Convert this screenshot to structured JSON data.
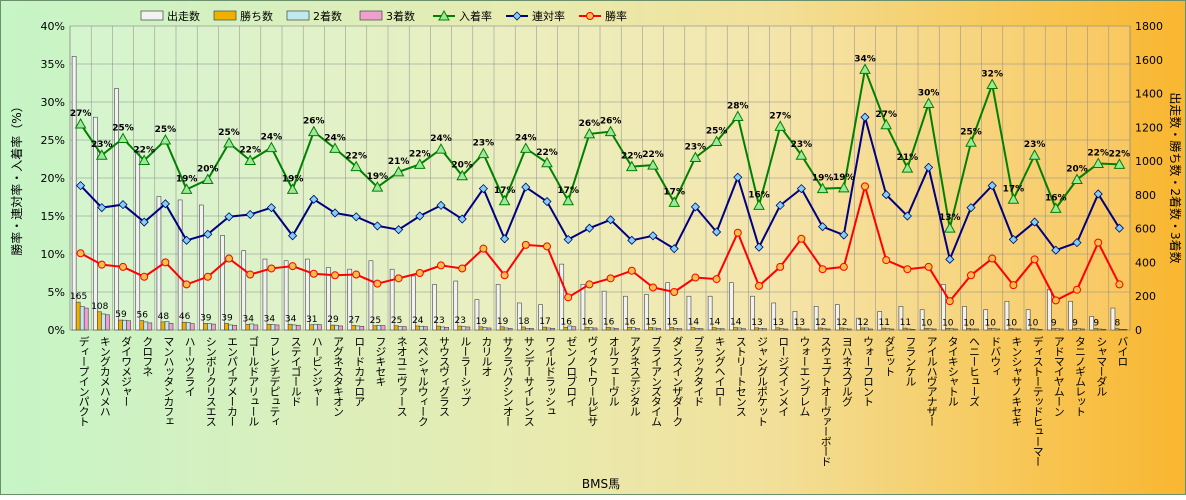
{
  "chart_data": {
    "type": "bar",
    "xlabel": "BMS馬",
    "ylabel_left": "勝率・連対率・入着率（%）",
    "ylabel_right": "出走数・勝ち数・2着数・3着数",
    "ylim_left": [
      0,
      40
    ],
    "ylim_right": [
      0,
      1800
    ],
    "left_ticks": [
      "0%",
      "5%",
      "10%",
      "15%",
      "20%",
      "25%",
      "30%",
      "35%",
      "40%"
    ],
    "right_ticks": [
      "0",
      "200",
      "400",
      "600",
      "800",
      "1000",
      "1200",
      "1400",
      "1600",
      "1800"
    ],
    "grid": true,
    "legend_position": "top",
    "colors": {
      "starts": "#f2f2f2",
      "wins": "#f0b000",
      "seconds": "#bfe8ef",
      "thirds": "#f0a0d0",
      "place_rate": "#008000",
      "quinella_rate": "#000080",
      "win_rate": "#ff0000"
    },
    "categories": [
      "ディープインパクト",
      "キングカメハメハ",
      "ダイワメジャー",
      "クロフネ",
      "マンハッタンカフェ",
      "ハーツクライ",
      "シンボリクリスエス",
      "エンパイアメーカー",
      "ゴールドアリュール",
      "フレンチデピュティ",
      "ステイゴールド",
      "ハービンジャー",
      "アグネスタキオン",
      "ロードカナロア",
      "フジキセキ",
      "ネオユニヴァース",
      "スペシャルウィーク",
      "サウスヴィグラス",
      "ルーラーシップ",
      "カリルオ",
      "サクラバクシンオー",
      "サンデーサイレンス",
      "ワイルドラッシュ",
      "ゼンノロブロイ",
      "ヴィクトワールピサ",
      "オルフェーヴル",
      "アグネスデジタル",
      "ブライアンズタイム",
      "ダンスインザダーク",
      "ブラックタイド",
      "キングヘイロー",
      "ストリートセンス",
      "ジャングルポケット",
      "ロージズインメイ",
      "ウォーエンブレム",
      "スウェプトオーヴァーボード",
      "ヨハネスブルグ",
      "ウォーフロント",
      "ダビット",
      "フランケル",
      "アイルハヴアナザー",
      "タイキシャトル",
      "ヘニーヒューズ",
      "ドバウィ",
      "キンシャサノキセキ",
      "ディストーテッドヒューマー",
      "アドマイヤムーン",
      "タニノギムレット",
      "シャマーダル",
      "バイロ"
    ],
    "series": [
      {
        "name": "出走数",
        "axis": "right",
        "kind": "bar",
        "values": [
          1620,
          1260,
          1430,
          1060,
          790,
          770,
          740,
          560,
          470,
          420,
          410,
          420,
          370,
          360,
          410,
          360,
          320,
          270,
          290,
          180,
          270,
          160,
          150,
          390,
          270,
          230,
          200,
          210,
          280,
          200,
          200,
          280,
          200,
          160,
          110,
          140,
          150,
          70,
          110,
          140,
          120,
          270,
          140,
          120,
          170,
          120,
          240,
          170,
          80,
          130
        ]
      },
      {
        "name": "勝ち数",
        "axis": "right",
        "kind": "bar",
        "values": [
          165,
          108,
          59,
          56,
          48,
          46,
          39,
          39,
          34,
          34,
          34,
          31,
          29,
          27,
          25,
          25,
          24,
          23,
          23,
          19,
          19,
          18,
          17,
          16,
          16,
          16,
          16,
          15,
          15,
          14,
          14,
          14,
          13,
          13,
          13,
          12,
          12,
          12,
          11,
          11,
          10,
          10,
          10,
          10,
          10,
          10,
          9,
          9,
          9,
          8
        ]
      },
      {
        "name": "2着数",
        "axis": "right",
        "kind": "bar",
        "values": [
          140,
          95,
          58,
          48,
          50,
          45,
          38,
          30,
          36,
          32,
          30,
          34,
          28,
          24,
          28,
          20,
          22,
          18,
          20,
          14,
          12,
          10,
          12,
          24,
          14,
          12,
          14,
          12,
          10,
          10,
          8,
          12,
          10,
          8,
          6,
          8,
          8,
          12,
          8,
          6,
          8,
          8,
          6,
          8,
          6,
          6,
          8,
          8,
          6,
          4
        ]
      },
      {
        "name": "3着数",
        "axis": "right",
        "kind": "bar",
        "values": [
          130,
          90,
          55,
          42,
          40,
          38,
          35,
          28,
          30,
          30,
          28,
          32,
          24,
          22,
          26,
          20,
          20,
          16,
          18,
          12,
          10,
          10,
          10,
          20,
          12,
          10,
          10,
          10,
          8,
          8,
          8,
          8,
          8,
          6,
          6,
          6,
          6,
          6,
          6,
          4,
          6,
          6,
          6,
          6,
          6,
          4,
          6,
          6,
          4,
          4
        ]
      },
      {
        "name": "入着率",
        "axis": "left",
        "kind": "line",
        "values": [
          27.1,
          23.0,
          25.2,
          22.3,
          25.0,
          18.5,
          19.8,
          24.6,
          22.3,
          24.0,
          18.5,
          26.1,
          23.9,
          21.5,
          18.8,
          20.8,
          21.8,
          23.8,
          20.3,
          23.2,
          17.0,
          23.9,
          22.0,
          17.0,
          25.8,
          26.1,
          21.5,
          21.7,
          16.8,
          22.7,
          24.8,
          28.1,
          16.4,
          26.8,
          23.0,
          18.6,
          18.7,
          34.3,
          27.0,
          21.3,
          29.8,
          13.4,
          24.7,
          32.3,
          17.2,
          23.0,
          16.0,
          19.8,
          21.9,
          21.8
        ]
      },
      {
        "name": "連対率",
        "axis": "right",
        "kind": "line",
        "values": [
          19.0,
          16.1,
          16.5,
          14.2,
          16.6,
          11.8,
          12.6,
          14.9,
          15.2,
          16.1,
          12.4,
          17.2,
          15.4,
          14.9,
          13.7,
          13.2,
          15.0,
          16.4,
          14.6,
          18.6,
          12.0,
          18.8,
          16.9,
          11.9,
          13.4,
          14.5,
          11.8,
          12.4,
          10.7,
          16.2,
          12.9,
          20.1,
          10.9,
          16.4,
          18.6,
          13.6,
          12.5,
          28.0,
          17.8,
          15.0,
          21.4,
          9.3,
          16.1,
          19.0,
          11.9,
          14.2,
          10.5,
          11.5,
          17.9,
          13.4
        ]
      },
      {
        "name": "勝率",
        "axis": "left",
        "kind": "line",
        "values": [
          10.1,
          8.6,
          8.3,
          7.0,
          8.9,
          6.0,
          7.0,
          9.4,
          7.3,
          8.1,
          8.4,
          7.4,
          7.2,
          7.3,
          6.1,
          6.8,
          7.5,
          8.5,
          8.1,
          10.7,
          7.2,
          11.2,
          11.0,
          4.3,
          6.0,
          6.8,
          7.8,
          5.6,
          5.0,
          6.9,
          6.7,
          12.8,
          5.8,
          8.3,
          12.0,
          8.0,
          8.3,
          18.9,
          9.2,
          8.0,
          8.3,
          3.8,
          7.2,
          9.4,
          5.9,
          9.3,
          3.9,
          5.3,
          11.5,
          6.0
        ]
      }
    ]
  }
}
